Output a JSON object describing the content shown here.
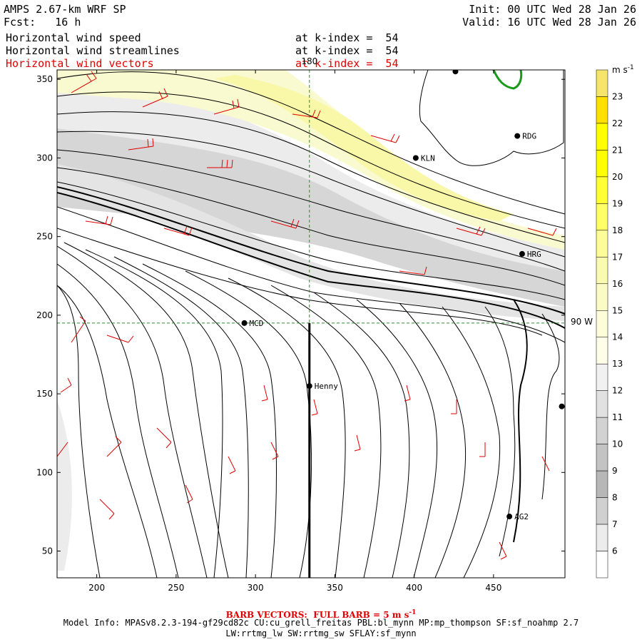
{
  "header": {
    "model": "AMPS 2.67-km WRF SP",
    "fcst_label": "Fcst:",
    "fcst_value": "16 h",
    "init": "Init: 00 UTC Wed 28 Jan 26",
    "valid": "Valid: 16 UTC Wed 28 Jan 26"
  },
  "fields": [
    {
      "name": "Horizontal wind speed",
      "level": "at k-index =  54",
      "color": "#000000"
    },
    {
      "name": "Horizontal wind streamlines",
      "level": "at k-index =  54",
      "color": "#000000"
    },
    {
      "name": "Horizontal wind vectors",
      "level": "at k-index =  54",
      "color": "#e00000"
    }
  ],
  "map": {
    "meridian_label": "180",
    "parallel_label": "90 W",
    "x_ticks": [
      "200",
      "250",
      "300",
      "350",
      "400",
      "450"
    ],
    "y_ticks": [
      "350",
      "300",
      "250",
      "200",
      "150",
      "100",
      "50"
    ],
    "x_tick_values": [
      200,
      250,
      300,
      350,
      400,
      450
    ],
    "y_tick_values": [
      350,
      300,
      250,
      200,
      150,
      100,
      50
    ],
    "x_range": [
      175,
      495
    ],
    "y_range": [
      33,
      356
    ],
    "stations": [
      {
        "name": "KLN",
        "x": 401,
        "y": 300
      },
      {
        "name": "RDG",
        "x": 465,
        "y": 314
      },
      {
        "name": "HRG",
        "x": 468,
        "y": 239
      },
      {
        "name": "MCD",
        "x": 293,
        "y": 195
      },
      {
        "name": "Henny",
        "x": 334,
        "y": 155
      },
      {
        "name": "AG2",
        "x": 460,
        "y": 72
      },
      {
        "name": "",
        "x": 426,
        "y": 355
      },
      {
        "name": "",
        "x": 493,
        "y": 142
      }
    ],
    "bold_line_x": 334,
    "dashed_x": 334,
    "dashed_y": 195
  },
  "colorbar": {
    "units": "m s",
    "units_exp": "-1",
    "labels": [
      "23",
      "22",
      "21",
      "20",
      "19",
      "18",
      "17",
      "16",
      "15",
      "14",
      "13",
      "12",
      "11",
      "10",
      "9",
      "8",
      "7",
      "6"
    ],
    "colors": [
      "#f5e56a",
      "#ffe000",
      "#ffff00",
      "#ffff00",
      "#ffff33",
      "#ffff66",
      "#fcfc99",
      "#fafab0",
      "#fbfbc6",
      "#fdfdda",
      "#fefee8",
      "#f1f1f1",
      "#e1e1e1",
      "#d2d2d2",
      "#c3c3c3",
      "#b7b7b7",
      "#d0d0d0",
      "#ececec",
      "#ffffff"
    ]
  },
  "footer": {
    "barb_label": "BARB VECTORS:  FULL BARB = 5 m s",
    "barb_exp": "-1",
    "model_info": "Model Info: MPASv8.2.3-194-gf29cd82c CU:cu_grell_freitas PBL:bl_mynn MP:mp_thompson SF:sf_noahmp 2.7",
    "model_info2": "LW:rrtmg_lw SW:rrtmg_sw SFLAY:sf_mynn"
  }
}
